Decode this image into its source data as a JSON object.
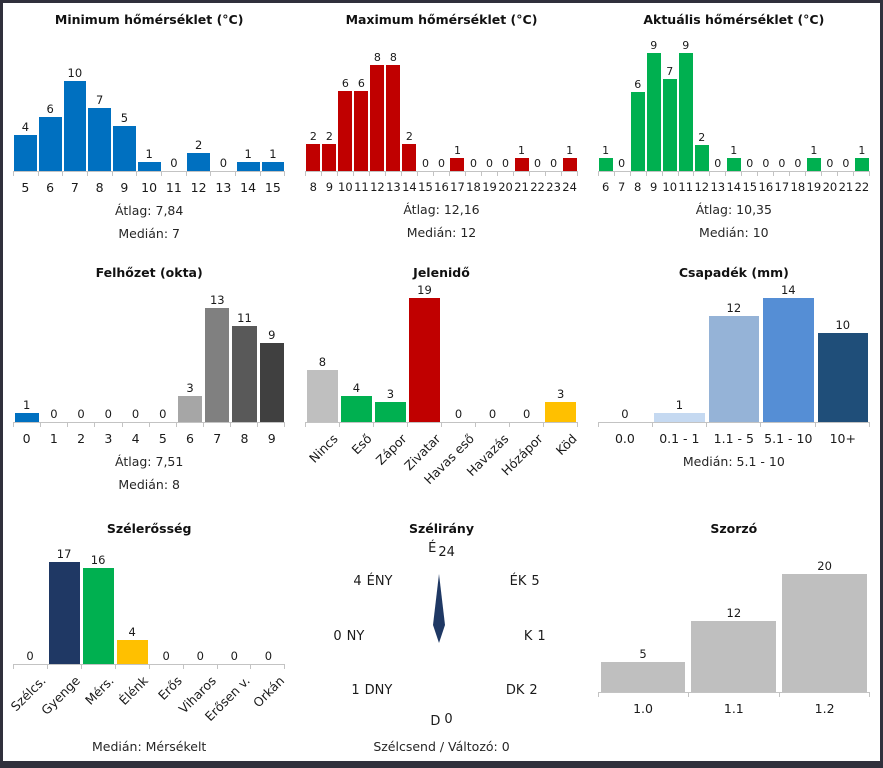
{
  "window": {
    "frame_color": "#30303C",
    "background": "#FFFFFF"
  },
  "chart_data": [
    {
      "type": "bar",
      "title": "Minimum hőmérséklet (°C)",
      "categories": [
        "5",
        "6",
        "7",
        "8",
        "9",
        "10",
        "11",
        "12",
        "13",
        "14",
        "15"
      ],
      "values": [
        4,
        6,
        10,
        7,
        5,
        1,
        0,
        2,
        0,
        1,
        1
      ],
      "color": "#0070C0",
      "ylim": [
        0,
        10
      ],
      "stats": [
        "Átlag: 7,84",
        "Medián: 7"
      ]
    },
    {
      "type": "bar",
      "title": "Maximum hőmérséklet (°C)",
      "categories": [
        "8",
        "9",
        "10",
        "11",
        "12",
        "13",
        "14",
        "15",
        "16",
        "17",
        "18",
        "19",
        "20",
        "21",
        "22",
        "23",
        "24"
      ],
      "values": [
        2,
        2,
        6,
        6,
        8,
        8,
        2,
        0,
        0,
        1,
        0,
        0,
        0,
        1,
        0,
        0,
        1
      ],
      "color": "#C00000",
      "ylim": [
        0,
        8
      ],
      "stats": [
        "Átlag: 12,16",
        "Medián: 12"
      ]
    },
    {
      "type": "bar",
      "title": "Aktuális hőmérséklet (°C)",
      "categories": [
        "6",
        "7",
        "8",
        "9",
        "10",
        "11",
        "12",
        "13",
        "14",
        "15",
        "16",
        "17",
        "18",
        "19",
        "20",
        "21",
        "22"
      ],
      "values": [
        1,
        0,
        6,
        9,
        7,
        9,
        2,
        0,
        1,
        0,
        0,
        0,
        0,
        1,
        0,
        0,
        1
      ],
      "color": "#00B050",
      "ylim": [
        0,
        9
      ],
      "stats": [
        "Átlag: 10,35",
        "Medián: 10"
      ]
    },
    {
      "type": "bar",
      "title": "Felhőzet (okta)",
      "categories": [
        "0",
        "1",
        "2",
        "3",
        "4",
        "5",
        "6",
        "7",
        "8",
        "9"
      ],
      "values": [
        1,
        0,
        0,
        0,
        0,
        0,
        3,
        13,
        11,
        9
      ],
      "bar_colors": [
        "#0070C0",
        "#BFBFBF",
        "#BFBFBF",
        "#BFBFBF",
        "#BFBFBF",
        "#BFBFBF",
        "#A6A6A6",
        "#808080",
        "#595959",
        "#404040"
      ],
      "ylim": [
        0,
        13
      ],
      "stats": [
        "Átlag: 7,51",
        "Medián: 8"
      ]
    },
    {
      "type": "bar",
      "title": "Jelenidő",
      "categories": [
        "Nincs",
        "Eső",
        "Zápor",
        "Zivatar",
        "Havas eső",
        "Havazás",
        "Hózápor",
        "Köd"
      ],
      "values": [
        8,
        4,
        3,
        19,
        0,
        0,
        0,
        3
      ],
      "bar_colors": [
        "#BFBFBF",
        "#00B050",
        "#00B050",
        "#C00000",
        "#BFBFBF",
        "#BFBFBF",
        "#BFBFBF",
        "#FFC000"
      ],
      "ylim": [
        0,
        19
      ],
      "label_rotation": -45,
      "stats": []
    },
    {
      "type": "bar",
      "title": "Csapadék (mm)",
      "categories": [
        "0.0",
        "0.1 - 1",
        "1.1 - 5",
        "5.1 - 10",
        "10+"
      ],
      "values": [
        0,
        1,
        12,
        14,
        10
      ],
      "bar_colors": [
        "#C5D9F1",
        "#C5D9F1",
        "#95B3D7",
        "#558ED5",
        "#1F4E79"
      ],
      "ylim": [
        0,
        14
      ],
      "stats": [
        "Medián: 5.1 - 10"
      ]
    },
    {
      "type": "bar",
      "title": "Szélerősség",
      "categories": [
        "Szélcs.",
        "Gyenge",
        "Mérs.",
        "Élénk",
        "Erős",
        "Viharos",
        "Erősen v.",
        "Orkán"
      ],
      "values": [
        0,
        17,
        16,
        4,
        0,
        0,
        0,
        0
      ],
      "bar_colors": [
        "#BFBFBF",
        "#1F3864",
        "#00B050",
        "#FFC000",
        "#BFBFBF",
        "#BFBFBF",
        "#BFBFBF",
        "#BFBFBF"
      ],
      "ylim": [
        0,
        17
      ],
      "label_rotation": -45,
      "stats": [
        "Medián: Mérsékelt"
      ]
    },
    {
      "type": "compass",
      "title": "Szélirány",
      "directions": [
        {
          "dir": "É",
          "count": 24
        },
        {
          "dir": "ÉK",
          "count": 5
        },
        {
          "dir": "K",
          "count": 1
        },
        {
          "dir": "DK",
          "count": 2
        },
        {
          "dir": "D",
          "count": 0
        },
        {
          "dir": "DNY",
          "count": 1
        },
        {
          "dir": "NY",
          "count": 0
        },
        {
          "dir": "ÉNY",
          "count": 4
        }
      ],
      "needle_points_to": "É",
      "needle_color": "#1F3864",
      "calm_label": "Szélcsend / Változó: 0"
    },
    {
      "type": "bar",
      "title": "Szorzó",
      "categories": [
        "1.0",
        "1.1",
        "1.2"
      ],
      "values": [
        5,
        12,
        20
      ],
      "color": "#BFBFBF",
      "ylim": [
        0,
        20
      ],
      "stats": []
    }
  ]
}
